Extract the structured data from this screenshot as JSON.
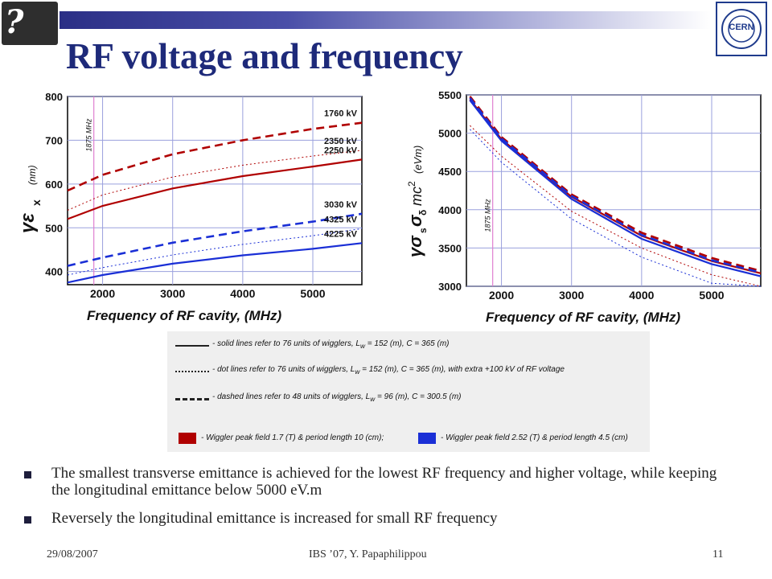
{
  "logos": {
    "ibs": "?ibs",
    "cern": "CERN"
  },
  "title": "RF voltage and frequency",
  "colors": {
    "red": "#b00000",
    "blue": "#1a2fd6",
    "accent": "#1e2a7a"
  },
  "chart_data": [
    {
      "type": "line",
      "xlabel": "Frequency of RF cavity,   (MHz)",
      "ylabel_symbol": "γε",
      "ylabel_sub": "x",
      "ylabel_unit": "(nm)",
      "xlim": [
        1500,
        5700
      ],
      "ylim": [
        370,
        800
      ],
      "xticks": [
        2000,
        3000,
        4000,
        5000
      ],
      "yticks": [
        400,
        500,
        600,
        700,
        800
      ],
      "marker_line": {
        "x": 1875,
        "label": "1875 MHz"
      },
      "series": [
        {
          "name": "1760 kV",
          "color": "red",
          "style": "dashed",
          "x": [
            1500,
            2000,
            3000,
            4000,
            5000,
            5700
          ],
          "y": [
            585,
            621,
            668,
            700,
            726,
            740
          ]
        },
        {
          "name": "2350 kV",
          "color": "red",
          "style": "dotted",
          "x": [
            1500,
            2000,
            3000,
            4000,
            5000,
            5700
          ],
          "y": [
            540,
            575,
            616,
            643,
            664,
            677
          ]
        },
        {
          "name": "2250 kV",
          "color": "red",
          "style": "solid",
          "x": [
            1500,
            2000,
            3000,
            4000,
            5000,
            5700
          ],
          "y": [
            520,
            550,
            590,
            618,
            640,
            656
          ]
        },
        {
          "name": "3030 kV",
          "color": "blue",
          "style": "dashed",
          "x": [
            1500,
            2000,
            3000,
            4000,
            5000,
            5700
          ],
          "y": [
            413,
            432,
            466,
            492,
            514,
            532
          ]
        },
        {
          "name": "4325 kV",
          "color": "blue",
          "style": "dotted",
          "x": [
            1500,
            2000,
            3000,
            4000,
            5000,
            5700
          ],
          "y": [
            392,
            409,
            438,
            462,
            482,
            498
          ]
        },
        {
          "name": "4225 kV",
          "color": "blue",
          "style": "solid",
          "x": [
            1500,
            2000,
            3000,
            4000,
            5000,
            5700
          ],
          "y": [
            375,
            392,
            418,
            437,
            452,
            465
          ]
        }
      ]
    },
    {
      "type": "line",
      "xlabel": "Frequency of RF cavity,   (MHz)",
      "ylabel_symbol": "γσ",
      "ylabel_rest": "s",
      "ylabel_sigma": "σ",
      "ylabel_delta": "δ",
      "ylabel_mc": "mc",
      "ylabel_sup": "2",
      "ylabel_unit": "(eVm)",
      "xlim": [
        1500,
        5700
      ],
      "ylim": [
        3000,
        5500
      ],
      "xticks": [
        2000,
        3000,
        4000,
        5000
      ],
      "yticks": [
        3000,
        3500,
        4000,
        4500,
        5000,
        5500
      ],
      "marker_line": {
        "x": 1875,
        "label": "1875 MHz"
      },
      "series": [
        {
          "color": "red",
          "style": "dashed",
          "x": [
            1550,
            2000,
            3000,
            4000,
            5000,
            5700
          ],
          "y": [
            5480,
            4950,
            4200,
            3700,
            3370,
            3200
          ]
        },
        {
          "color": "red",
          "style": "solid",
          "x": [
            1550,
            2000,
            3000,
            4000,
            5000,
            5700
          ],
          "y": [
            5440,
            4920,
            4170,
            3660,
            3330,
            3170
          ]
        },
        {
          "color": "blue",
          "style": "dashed",
          "x": [
            1550,
            2000,
            3000,
            4000,
            5000,
            5700
          ],
          "y": [
            5460,
            4930,
            4180,
            3670,
            3340,
            3180
          ]
        },
        {
          "color": "blue",
          "style": "solid",
          "x": [
            1550,
            2000,
            3000,
            4000,
            5000,
            5700
          ],
          "y": [
            5430,
            4900,
            4140,
            3620,
            3290,
            3130
          ]
        },
        {
          "color": "red",
          "style": "dotted",
          "x": [
            1550,
            2000,
            3000,
            4000,
            5000,
            5700
          ],
          "y": [
            5100,
            4700,
            3980,
            3500,
            3150,
            2980
          ]
        },
        {
          "color": "blue",
          "style": "dotted",
          "x": [
            1550,
            2000,
            3000,
            4000,
            5000,
            5700
          ],
          "y": [
            5050,
            4620,
            3880,
            3380,
            3040,
            2880
          ]
        }
      ]
    }
  ],
  "legend": {
    "line_solid": "- solid lines refer to 76 units of wigglers, L",
    "line_solid_sub": "w",
    "line_solid_rest": "= 152 (m),  C = 365 (m)",
    "line_dot": "- dot lines refer to 76 units of wigglers, L",
    "line_dot_sub": "w",
    "line_dot_rest": "= 152 (m),  C = 365 (m),   with extra  +100 kV  of  RF voltage",
    "line_dash": "- dashed lines refer to 48 units of wigglers, L",
    "line_dash_sub": "w",
    "line_dash_rest": "= 96 (m), C = 300.5 (m)",
    "red_text": "- Wiggler peak field 1.7 (T) & period length  10 (cm);",
    "blue_text": "- Wiggler peak field 2.52 (T) & period length  4.5 (cm)"
  },
  "bullets": [
    "The smallest transverse emittance is achieved for the lowest RF frequency and higher voltage, while keeping the longitudinal emittance below 5000 eV.m",
    "Reversely the longitudinal emittance is increased for small RF frequency"
  ],
  "footer": {
    "date": "29/08/2007",
    "center": "IBS ’07,  Y. Papaphilippou",
    "page": "11"
  }
}
